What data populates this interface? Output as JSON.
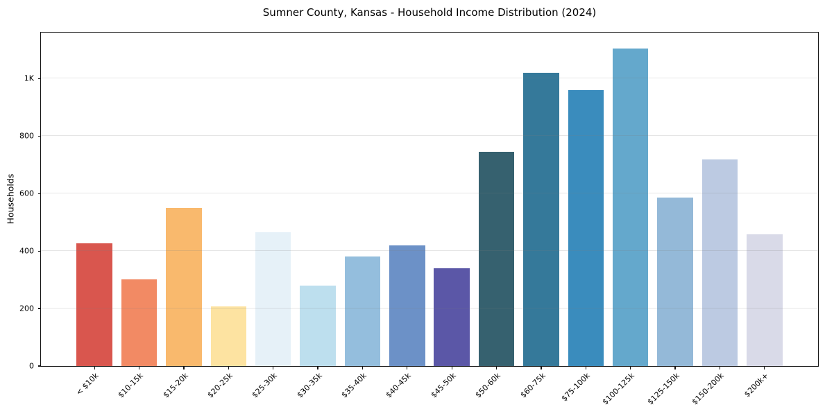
{
  "chart_data": {
    "type": "bar",
    "title": "Sumner County, Kansas - Household Income Distribution (2024)",
    "xlabel": "",
    "ylabel": "Households",
    "categories": [
      "< $10k",
      "$10-15k",
      "$15-20k",
      "$20-25k",
      "$25-30k",
      "$30-35k",
      "$35-40k",
      "$40-45k",
      "$45-50k",
      "$50-60k",
      "$60-75k",
      "$75-100k",
      "$100-125k",
      "$125-150k",
      "$150-200k",
      "$200k+"
    ],
    "values": [
      426,
      301,
      551,
      208,
      466,
      280,
      381,
      420,
      340,
      746,
      1020,
      961,
      1104,
      587,
      719,
      458
    ],
    "bar_colors": [
      "#d9564e",
      "#f28a64",
      "#f9b96d",
      "#fde3a1",
      "#e6f1f8",
      "#bddfee",
      "#94bedd",
      "#6c91c7",
      "#5b57a7",
      "#36616f",
      "#35799a",
      "#3a8cbd",
      "#64a8cc",
      "#94b9d8",
      "#bccae2",
      "#d9dae8"
    ],
    "ylim": [
      0,
      1160
    ],
    "yticks": [
      {
        "value": 0,
        "label": "0"
      },
      {
        "value": 200,
        "label": "200"
      },
      {
        "value": 400,
        "label": "400"
      },
      {
        "value": 600,
        "label": "600"
      },
      {
        "value": 800,
        "label": "800"
      },
      {
        "value": 1000,
        "label": "1K"
      }
    ],
    "grid": "horizontal gridlines at labeled y ticks, drawn light gray and faintly visible over bars",
    "legend": "none",
    "bar_width_fraction": 0.8
  },
  "colors": {
    "background": "#ffffff",
    "spine": "#141414",
    "gridline": "#e6e6e6",
    "text": "#000000"
  }
}
